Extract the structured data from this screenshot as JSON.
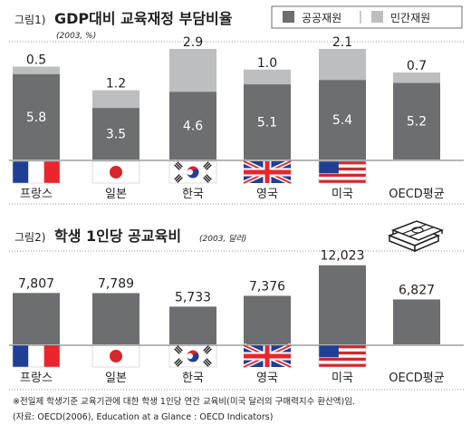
{
  "colors": {
    "public": "#6d6e71",
    "private": "#bcbec0",
    "bar2": "#6d6e71"
  },
  "legend": [
    {
      "label": "공공재원",
      "key": "public"
    },
    {
      "label": "민간재원",
      "key": "private"
    }
  ],
  "chart_data": [
    {
      "type": "bar",
      "stacked": true,
      "title_prefix": "그림1)",
      "title": "GDP대비 교육재정 부담비율",
      "unit": "(2003, %)",
      "categories": [
        "프랑스",
        "일본",
        "한국",
        "영국",
        "미국",
        "OECD평균"
      ],
      "flags": [
        "france-flag",
        "japan-flag",
        "korea-flag",
        "uk-flag",
        "usa-flag",
        ""
      ],
      "series": [
        {
          "name": "공공재원",
          "values": [
            5.8,
            3.5,
            4.6,
            5.1,
            5.4,
            5.2
          ],
          "labels": [
            "5.8",
            "3.5",
            "4.6",
            "5.1",
            "5.4",
            "5.2"
          ]
        },
        {
          "name": "민간재원",
          "values": [
            0.5,
            1.2,
            2.9,
            1.0,
            2.1,
            0.7
          ],
          "labels": [
            "0.5",
            "1.2",
            "2.9",
            "1.0",
            "2.1",
            "0.7"
          ]
        }
      ],
      "ylim": [
        0,
        7.5
      ],
      "legend_position": "top-right"
    },
    {
      "type": "bar",
      "title_prefix": "그림2)",
      "title": "학생 1인당 공교육비",
      "unit": "(2003, 달러)",
      "categories": [
        "프랑스",
        "일본",
        "한국",
        "영국",
        "미국",
        "OECD평균"
      ],
      "flags": [
        "france-flag",
        "japan-flag",
        "korea-flag",
        "uk-flag",
        "usa-flag",
        ""
      ],
      "values": [
        7807,
        7789,
        5733,
        7376,
        12023,
        6827
      ],
      "labels": [
        "7,807",
        "7,789",
        "5,733",
        "7,376",
        "12,023",
        "6,827"
      ],
      "ylim": [
        0,
        13500
      ]
    }
  ],
  "notes": [
    "※전일제 학생기준 교육기관에 대한 학생 1인당 연간 교육비(미국 달러의 구매력지수 환산액)임.",
    "(자료: OECD(2006), Education at a Glance : OECD Indicators)"
  ]
}
